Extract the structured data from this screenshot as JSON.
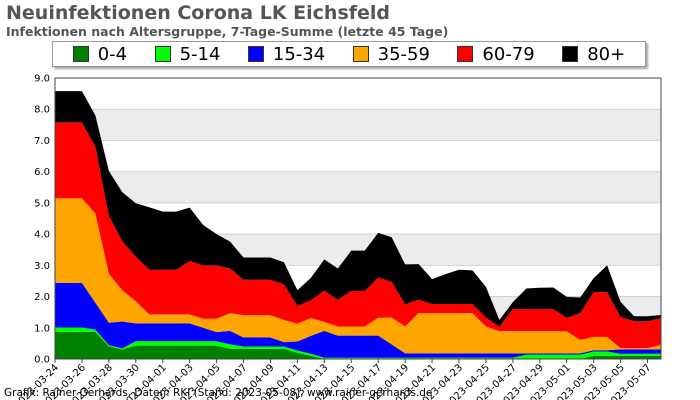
{
  "title": "Neuinfektionen Corona LK Eichsfeld",
  "subtitle": "Infektionen nach Altersgruppe, 7-Tage-Summe (letzte 45 Tage)",
  "footer": "Grafik: Rainer Gerhards, Daten: RKI (Stand: 2023-05-08), www.rainer-gerhards.de",
  "chart_data": {
    "type": "area",
    "stacked": true,
    "grid": true,
    "legend_position": "top",
    "ylim": [
      0,
      9
    ],
    "yticks": [
      "0.0",
      "1.0",
      "2.0",
      "3.0",
      "4.0",
      "5.0",
      "6.0",
      "7.0",
      "8.0",
      "9.0"
    ],
    "x": [
      "2023-03-24",
      "2023-03-25",
      "2023-03-26",
      "2023-03-27",
      "2023-03-28",
      "2023-03-29",
      "2023-03-30",
      "2023-03-31",
      "2023-04-01",
      "2023-04-02",
      "2023-04-03",
      "2023-04-04",
      "2023-04-05",
      "2023-04-06",
      "2023-04-07",
      "2023-04-08",
      "2023-04-09",
      "2023-04-10",
      "2023-04-11",
      "2023-04-12",
      "2023-04-13",
      "2023-04-14",
      "2023-04-15",
      "2023-04-16",
      "2023-04-17",
      "2023-04-18",
      "2023-04-19",
      "2023-04-20",
      "2023-04-21",
      "2023-04-22",
      "2023-04-23",
      "2023-04-24",
      "2023-04-25",
      "2023-04-26",
      "2023-04-27",
      "2023-04-28",
      "2023-04-29",
      "2023-04-30",
      "2023-05-01",
      "2023-05-02",
      "2023-05-03",
      "2023-05-04",
      "2023-05-05",
      "2023-05-06",
      "2023-05-07",
      "2023-05-08"
    ],
    "xtick_labels": [
      "2023-03-24",
      "2023-03-26",
      "2023-03-28",
      "2023-03-30",
      "2023-04-01",
      "2023-04-03",
      "2023-04-05",
      "2023-04-07",
      "2023-04-09",
      "2023-04-11",
      "2023-04-13",
      "2023-04-15",
      "2023-04-17",
      "2023-04-19",
      "2023-04-21",
      "2023-04-23",
      "2023-04-25",
      "2023-04-27",
      "2023-04-29",
      "2023-05-01",
      "2023-05-03",
      "2023-05-05",
      "2023-05-07"
    ],
    "series": [
      {
        "name": "0-4",
        "color": "#008000",
        "values": [
          0.87,
          0.87,
          0.87,
          0.87,
          0.4,
          0.3,
          0.43,
          0.43,
          0.43,
          0.43,
          0.43,
          0.43,
          0.43,
          0.33,
          0.33,
          0.33,
          0.33,
          0.33,
          0.2,
          0.1,
          0,
          0,
          0,
          0,
          0,
          0,
          0,
          0,
          0,
          0,
          0,
          0,
          0,
          0,
          0,
          0,
          0,
          0,
          0,
          0,
          0.1,
          0.1,
          0.1,
          0.1,
          0.1,
          0.1
        ]
      },
      {
        "name": "5-14",
        "color": "#00ff00",
        "values": [
          0.14,
          0.14,
          0.14,
          0.07,
          0.04,
          0.04,
          0.14,
          0.14,
          0.14,
          0.14,
          0.14,
          0.14,
          0.14,
          0.14,
          0.07,
          0.07,
          0.07,
          0.07,
          0.07,
          0.07,
          0.04,
          0.04,
          0.04,
          0.04,
          0.04,
          0.04,
          0.04,
          0.04,
          0.04,
          0.04,
          0.04,
          0.04,
          0.04,
          0.04,
          0.04,
          0.14,
          0.14,
          0.14,
          0.14,
          0.14,
          0.14,
          0.14,
          0.07,
          0.07,
          0.07,
          0.07
        ]
      },
      {
        "name": "15-34",
        "color": "#0000ff",
        "values": [
          1.43,
          1.43,
          1.43,
          0.86,
          0.72,
          0.86,
          0.57,
          0.57,
          0.57,
          0.57,
          0.57,
          0.43,
          0.29,
          0.43,
          0.29,
          0.29,
          0.29,
          0.14,
          0.29,
          0.57,
          0.86,
          0.71,
          0.71,
          0.71,
          0.71,
          0.43,
          0.14,
          0.14,
          0.14,
          0.14,
          0.14,
          0.14,
          0.14,
          0.14,
          0.14,
          0.04,
          0.04,
          0.04,
          0.04,
          0.04,
          0.04,
          0.04,
          0.14,
          0.14,
          0.14,
          0.14
        ]
      },
      {
        "name": "35-59",
        "color": "#ffa500",
        "values": [
          2.71,
          2.71,
          2.71,
          2.86,
          1.57,
          1.0,
          0.71,
          0.29,
          0.29,
          0.29,
          0.29,
          0.29,
          0.43,
          0.57,
          0.71,
          0.71,
          0.71,
          0.71,
          0.57,
          0.57,
          0.29,
          0.29,
          0.29,
          0.29,
          0.57,
          0.86,
          0.86,
          1.29,
          1.29,
          1.29,
          1.29,
          1.29,
          0.86,
          0.71,
          0.71,
          0.71,
          0.71,
          0.71,
          0.71,
          0.43,
          0.43,
          0.43,
          0.04,
          0.04,
          0.04,
          0.14
        ]
      },
      {
        "name": "60-79",
        "color": "#ff0000",
        "values": [
          2.43,
          2.43,
          2.43,
          2.14,
          1.86,
          1.57,
          1.43,
          1.43,
          1.43,
          1.43,
          1.71,
          1.71,
          1.71,
          1.43,
          1.14,
          1.14,
          1.14,
          1.14,
          0.57,
          0.57,
          1.0,
          0.86,
          1.14,
          1.14,
          1.29,
          1.14,
          0.71,
          0.43,
          0.29,
          0.29,
          0.29,
          0.29,
          0.29,
          0.14,
          0.71,
          0.71,
          0.71,
          0.71,
          0.43,
          0.86,
          1.43,
          1.43,
          1.0,
          0.86,
          0.86,
          0.86
        ]
      },
      {
        "name": "80+",
        "color": "#000000",
        "values": [
          1.0,
          1.0,
          1.0,
          1.0,
          1.43,
          1.57,
          1.71,
          2.0,
          1.86,
          1.86,
          1.71,
          1.29,
          1.0,
          0.86,
          0.71,
          0.71,
          0.71,
          0.71,
          0.5,
          0.72,
          1.0,
          1.0,
          1.29,
          1.29,
          1.43,
          1.43,
          1.28,
          1.14,
          0.8,
          0.96,
          1.1,
          1.08,
          0.98,
          0.22,
          0.22,
          0.66,
          0.68,
          0.69,
          0.67,
          0.5,
          0.45,
          0.86,
          0.48,
          0.16,
          0.16,
          0.1
        ]
      }
    ]
  }
}
